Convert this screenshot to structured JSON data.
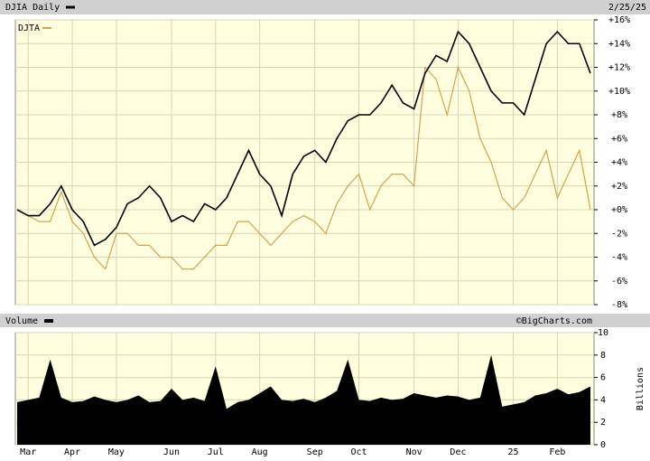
{
  "chart_data": [
    {
      "type": "line",
      "date_label": "2/25/25",
      "series": [
        {
          "name": "DJIA Daily",
          "color": "#000000",
          "values": [
            0,
            -0.5,
            -0.5,
            0.5,
            2,
            0,
            -1,
            -3,
            -2.5,
            -1.5,
            0.5,
            1,
            2,
            1,
            -1,
            -0.5,
            -1,
            0.5,
            0,
            1,
            3,
            5,
            3,
            2,
            -0.5,
            3,
            4.5,
            5,
            4,
            6,
            7.5,
            8,
            8,
            9,
            10.5,
            9,
            8.5,
            11.5,
            13,
            12.5,
            15,
            14,
            12,
            10,
            9,
            9,
            8,
            11,
            14,
            15,
            14,
            14,
            11.5
          ]
        },
        {
          "name": "DJTA",
          "color": "#d4a24b",
          "values": [
            0,
            -0.5,
            -1,
            -1,
            1.5,
            -1,
            -2,
            -4,
            -5,
            -2,
            -2,
            -3,
            -3,
            -4,
            -4,
            -5,
            -5,
            -4,
            -3,
            -3,
            -1,
            -1,
            -2,
            -3,
            -2,
            -1,
            -0.5,
            -1,
            -2,
            0.5,
            2,
            3,
            0,
            2,
            3,
            3,
            2,
            12,
            11,
            8,
            12,
            10,
            6,
            4,
            1,
            0,
            1,
            3,
            5,
            1,
            3,
            5,
            0
          ]
        }
      ],
      "ylim": [
        -8,
        16
      ],
      "yticks": [
        {
          "value": -8,
          "label": "-8%"
        },
        {
          "value": -6,
          "label": "-6%"
        },
        {
          "value": -4,
          "label": "-4%"
        },
        {
          "value": -2,
          "label": "-2%"
        },
        {
          "value": 0,
          "label": "+0%"
        },
        {
          "value": 2,
          "label": "+2%"
        },
        {
          "value": 4,
          "label": "+4%"
        },
        {
          "value": 6,
          "label": "+6%"
        },
        {
          "value": 8,
          "label": "+8%"
        },
        {
          "value": 10,
          "label": "+10%"
        },
        {
          "value": 12,
          "label": "+12%"
        },
        {
          "value": 14,
          "label": "+14%"
        },
        {
          "value": 16,
          "label": "+16%"
        }
      ],
      "grid": true
    },
    {
      "type": "area",
      "title": "Volume",
      "source": "©BigCharts.com",
      "y_label": "Billions",
      "color": "#000000",
      "categories": [
        null,
        "Mar",
        null,
        null,
        null,
        "Apr",
        null,
        null,
        null,
        "May",
        null,
        null,
        null,
        null,
        "Jun",
        null,
        null,
        null,
        "Jul",
        null,
        null,
        null,
        "Aug",
        null,
        null,
        null,
        null,
        "Sep",
        null,
        null,
        null,
        "Oct",
        null,
        null,
        null,
        null,
        "Nov",
        null,
        null,
        null,
        "Dec",
        null,
        null,
        null,
        null,
        "25",
        null,
        null,
        null,
        "Feb",
        null,
        null,
        null
      ],
      "values": [
        3.8,
        4,
        4.2,
        7.6,
        4.2,
        3.8,
        3.9,
        4.3,
        4,
        3.8,
        4,
        4.4,
        3.8,
        3.9,
        5,
        4,
        4.2,
        3.9,
        7,
        3.2,
        3.8,
        4,
        4.6,
        5.2,
        4,
        3.9,
        4.1,
        3.8,
        4.2,
        4.8,
        7.6,
        4,
        3.9,
        4.2,
        4,
        4.1,
        4.6,
        4.4,
        4.2,
        4.4,
        4.3,
        4,
        4.2,
        8,
        3.4,
        3.6,
        3.8,
        4.4,
        4.6,
        5,
        4.5,
        4.7,
        5.2
      ],
      "ylim": [
        0,
        10
      ],
      "yticks": [
        0,
        2,
        4,
        6,
        8,
        10
      ],
      "grid": true
    }
  ]
}
